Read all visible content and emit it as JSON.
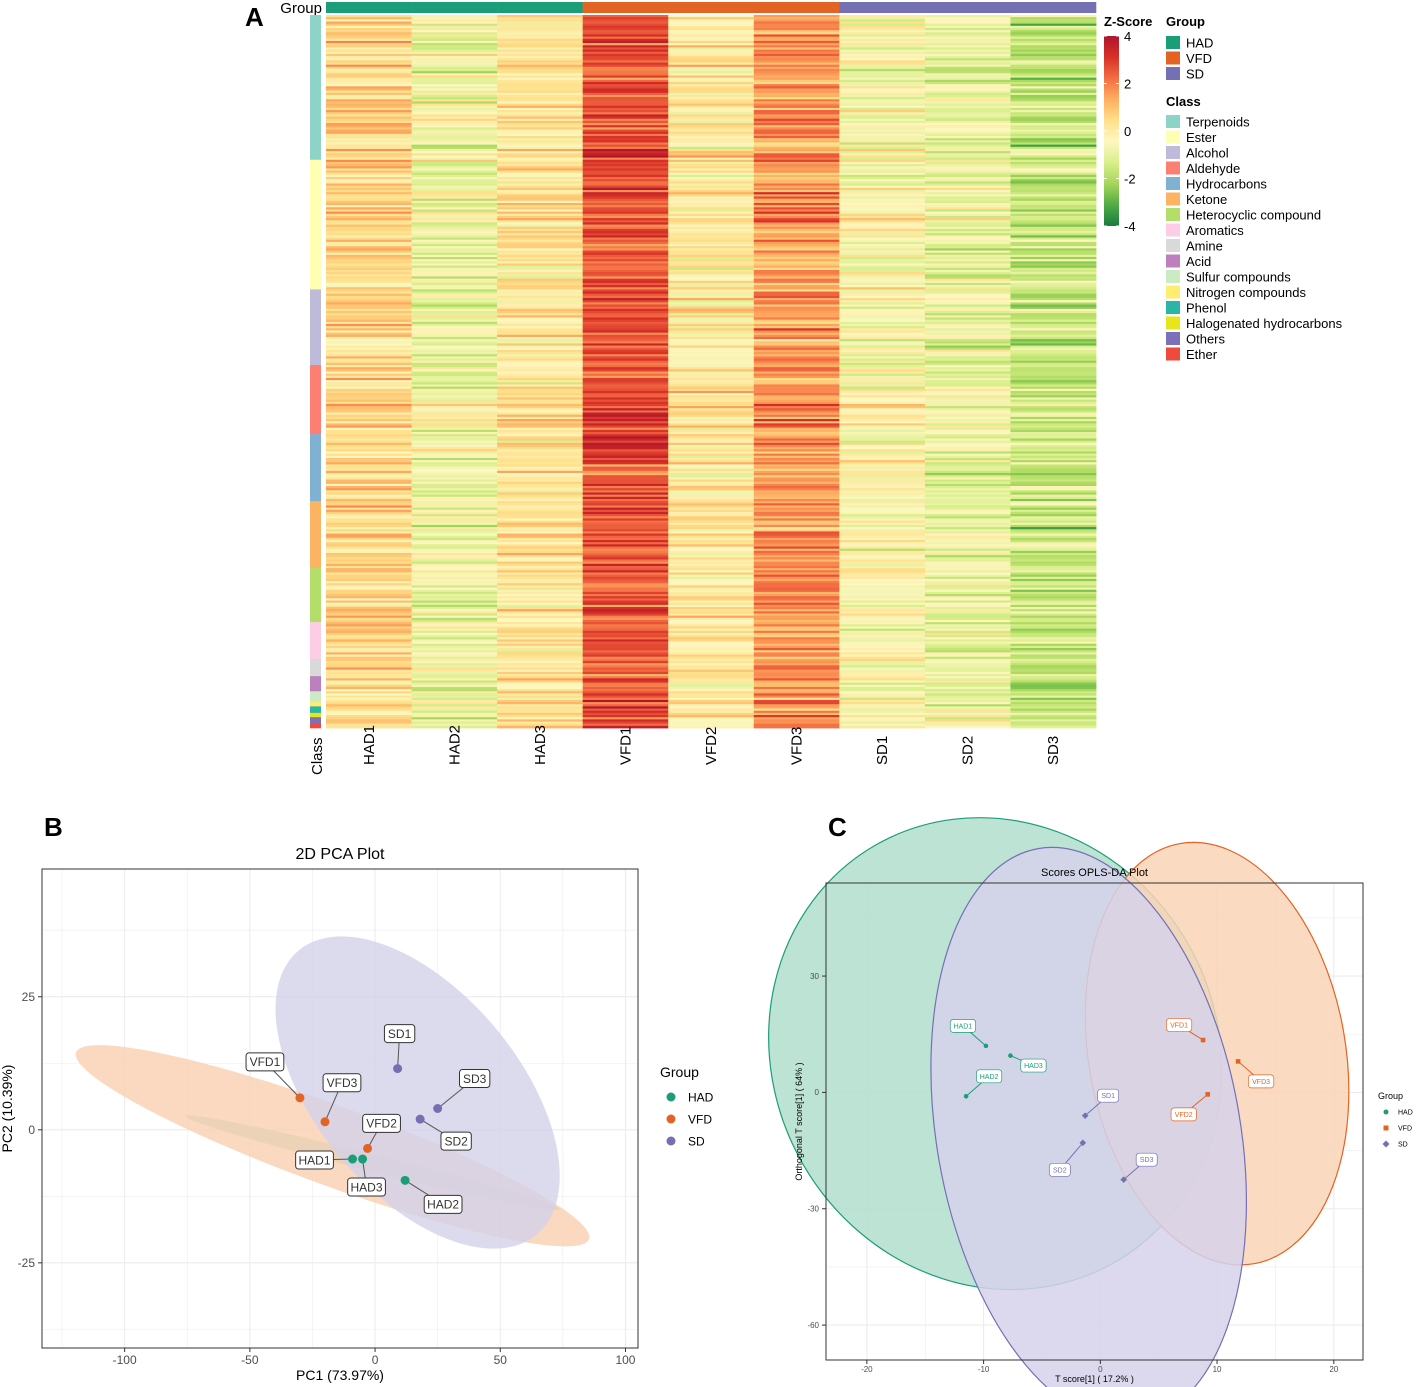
{
  "panels": {
    "a": "A",
    "b": "B",
    "c": "C"
  },
  "heatmap": {
    "group_label": "Group",
    "class_label": "Class",
    "samples": [
      "HAD1",
      "HAD2",
      "HAD3",
      "VFD1",
      "VFD2",
      "VFD3",
      "SD1",
      "SD2",
      "SD3"
    ],
    "sample_groups": [
      "HAD",
      "HAD",
      "HAD",
      "VFD",
      "VFD",
      "VFD",
      "SD",
      "SD",
      "SD"
    ],
    "group_means": [
      0.6,
      -0.7,
      0.2,
      2.6,
      0.1,
      1.7,
      -0.4,
      -0.9,
      -1.6
    ],
    "n_rows": 330,
    "scale": {
      "title": "Z-Score",
      "ticks": [
        "4",
        "2",
        "0",
        "-2",
        "-4"
      ],
      "values": [
        4,
        2,
        0,
        -2,
        -4
      ],
      "min": -4,
      "max": 4,
      "colors": [
        "#1a7a3f",
        "#4fac43",
        "#a6d65a",
        "#d9ef8b",
        "#fef7c0",
        "#fee08b",
        "#fdae61",
        "#f46d43",
        "#d73027",
        "#b0152c"
      ]
    },
    "legend_group_title": "Group",
    "legend_class_title": "Class",
    "groups": [
      {
        "name": "HAD",
        "color": "#1b9e77"
      },
      {
        "name": "VFD",
        "color": "#e36325"
      },
      {
        "name": "SD",
        "color": "#7570b3"
      }
    ],
    "classes": [
      {
        "name": "Terpenoids",
        "color": "#8dd3c7",
        "count": 67
      },
      {
        "name": "Ester",
        "color": "#ffffb3",
        "count": 60
      },
      {
        "name": "Alcohol",
        "color": "#bebada",
        "count": 35
      },
      {
        "name": "Aldehyde",
        "color": "#fb8072",
        "count": 32
      },
      {
        "name": "Hydrocarbons",
        "color": "#80b1d3",
        "count": 31
      },
      {
        "name": "Ketone",
        "color": "#fdb462",
        "count": 31
      },
      {
        "name": "Heterocyclic compound",
        "color": "#b3de69",
        "count": 25
      },
      {
        "name": "Aromatics",
        "color": "#fccde5",
        "count": 17
      },
      {
        "name": "Amine",
        "color": "#d9d9d9",
        "count": 8
      },
      {
        "name": "Acid",
        "color": "#bc80bd",
        "count": 7
      },
      {
        "name": "Sulfur compounds",
        "color": "#ccebc5",
        "count": 5
      },
      {
        "name": "Nitrogen compounds",
        "color": "#ffed6f",
        "count": 2
      },
      {
        "name": "Phenol",
        "color": "#2ab5a5",
        "count": 3
      },
      {
        "name": "Halogenated hydrocarbons",
        "color": "#e6e61a",
        "count": 2
      },
      {
        "name": "Others",
        "color": "#7d70b8",
        "count": 3
      },
      {
        "name": "Ether",
        "color": "#ee4b3c",
        "count": 2
      }
    ]
  },
  "chart_data": [
    {
      "type": "scatter",
      "title": "2D PCA Plot",
      "xlabel": "PC1 (73.97%)",
      "ylabel": "PC2 (10.39%)",
      "xlim": [
        -133,
        105
      ],
      "ylim": [
        -41,
        49
      ],
      "xticks": [
        -100,
        -50,
        0,
        50,
        100
      ],
      "yticks": [
        25,
        0,
        -25
      ],
      "grid": true,
      "legend_title": "Group",
      "legend_position": "right",
      "series": [
        {
          "name": "HAD",
          "color": "#1b9e77",
          "points": [
            {
              "label": "HAD1",
              "x": -9,
              "y": -5.5
            },
            {
              "label": "HAD2",
              "x": 12,
              "y": -9.5
            },
            {
              "label": "HAD3",
              "x": -5,
              "y": -5.5
            }
          ],
          "ellipse": {
            "cx": -1,
            "cy": -6.2,
            "a": 77,
            "b": 1.6,
            "angle_deg": -14,
            "color": "#a8d9c8"
          }
        },
        {
          "name": "VFD",
          "color": "#e36325",
          "points": [
            {
              "label": "VFD1",
              "x": -30,
              "y": 6
            },
            {
              "label": "VFD2",
              "x": -3,
              "y": -3.5
            },
            {
              "label": "VFD3",
              "x": -20,
              "y": 1.5
            }
          ],
          "ellipse": {
            "cx": -17,
            "cy": -3,
            "a": 109,
            "b": 7.5,
            "angle_deg": -20,
            "color": "#f9cfb0"
          }
        },
        {
          "name": "SD",
          "color": "#7570b3",
          "points": [
            {
              "label": "SD1",
              "x": 9,
              "y": 11.5
            },
            {
              "label": "SD2",
              "x": 18,
              "y": 2
            },
            {
              "label": "SD3",
              "x": 25,
              "y": 4
            }
          ],
          "ellipse": {
            "cx": 17,
            "cy": 7,
            "a": 74,
            "b": 19,
            "angle_deg": -50,
            "color": "#d3d1e8"
          }
        }
      ]
    },
    {
      "type": "scatter",
      "title": "Scores OPLS-DA Plot",
      "xlabel": "T score[1] ( 17.2% )",
      "ylabel": "Orthogonal T score[1] ( 64% )",
      "xlim": [
        -23.5,
        22.5
      ],
      "ylim": [
        -69,
        54
      ],
      "xticks": [
        -20,
        -10,
        0,
        10,
        20
      ],
      "yticks": [
        30,
        0,
        -30,
        -60
      ],
      "grid": true,
      "legend_title": "Group",
      "legend_position": "right",
      "series": [
        {
          "name": "HAD",
          "color": "#1b9e77",
          "marker": "circle",
          "points": [
            {
              "label": "HAD1",
              "x": -9.8,
              "y": 12
            },
            {
              "label": "HAD2",
              "x": -11.5,
              "y": -1
            },
            {
              "label": "HAD3",
              "x": -7.7,
              "y": 9.5
            }
          ],
          "ellipse": {
            "cx": -9,
            "cy": 10,
            "a": 19,
            "b": 62,
            "angle_deg": 30,
            "color": "#b2dece"
          }
        },
        {
          "name": "VFD",
          "color": "#e36325",
          "marker": "square",
          "points": [
            {
              "label": "VFD1",
              "x": 8.8,
              "y": 13.5
            },
            {
              "label": "VFD2",
              "x": 9.2,
              "y": -0.5
            },
            {
              "label": "VFD3",
              "x": 11.8,
              "y": 8
            }
          ],
          "ellipse": {
            "cx": 10,
            "cy": 10,
            "a": 11,
            "b": 55,
            "angle_deg": 10,
            "color": "#f9d3b6"
          }
        },
        {
          "name": "SD",
          "color": "#7570b3",
          "marker": "diamond",
          "points": [
            {
              "label": "SD1",
              "x": -1.3,
              "y": -6
            },
            {
              "label": "SD2",
              "x": -1.5,
              "y": -13
            },
            {
              "label": "SD3",
              "x": 2,
              "y": -22.5
            }
          ],
          "ellipse": {
            "cx": -1,
            "cy": -11,
            "a": 13,
            "b": 75,
            "angle_deg": 10,
            "color": "#d6d2eb"
          }
        }
      ]
    }
  ]
}
